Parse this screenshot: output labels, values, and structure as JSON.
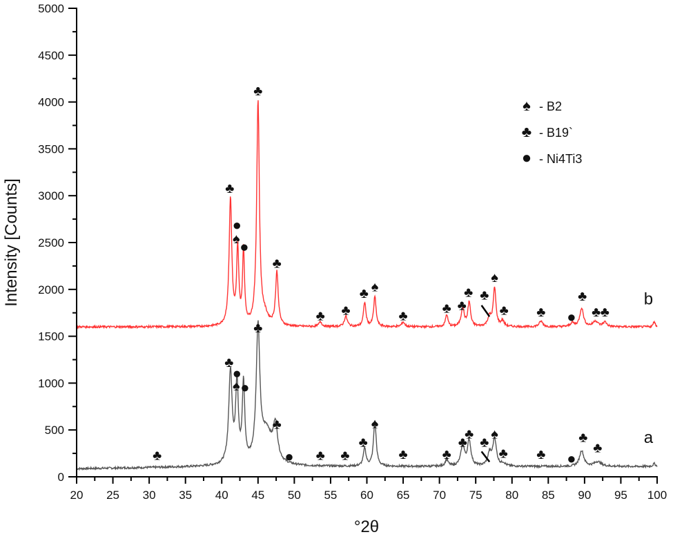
{
  "chart_data": {
    "type": "line",
    "title": "",
    "xlabel": "°2θ",
    "ylabel": "Intensity [Counts]",
    "xlim": [
      20,
      100
    ],
    "ylim": [
      0,
      5000
    ],
    "x_ticks": [
      20,
      25,
      30,
      35,
      40,
      45,
      50,
      55,
      60,
      65,
      70,
      75,
      80,
      85,
      90,
      95,
      100
    ],
    "y_ticks": [
      0,
      500,
      1000,
      1500,
      2000,
      2500,
      3000,
      3500,
      4000,
      4500,
      5000
    ],
    "grid": false,
    "legend_position": "upper right",
    "legend": [
      {
        "symbol": "spade",
        "label": "- B2"
      },
      {
        "symbol": "club",
        "label": "- B19`"
      },
      {
        "symbol": "circle",
        "label": "- Ni4Ti3"
      }
    ],
    "series": [
      {
        "name": "a",
        "color": "#555555",
        "baseline": 110,
        "peaks": [
          {
            "x": 41.2,
            "y": 1100,
            "w": 0.28
          },
          {
            "x": 42.1,
            "y": 960,
            "w": 0.22
          },
          {
            "x": 43.0,
            "y": 950,
            "w": 0.2
          },
          {
            "x": 45.0,
            "y": 1520,
            "w": 0.3
          },
          {
            "x": 46.2,
            "y": 450,
            "w": 0.9
          },
          {
            "x": 47.4,
            "y": 480,
            "w": 0.35
          },
          {
            "x": 59.7,
            "y": 300,
            "w": 0.22
          },
          {
            "x": 61.1,
            "y": 600,
            "w": 0.22
          },
          {
            "x": 71.0,
            "y": 180,
            "w": 0.25
          },
          {
            "x": 73.2,
            "y": 330,
            "w": 0.3
          },
          {
            "x": 74.1,
            "y": 380,
            "w": 0.28
          },
          {
            "x": 76.9,
            "y": 240,
            "w": 0.3
          },
          {
            "x": 77.6,
            "y": 400,
            "w": 0.3
          },
          {
            "x": 78.8,
            "y": 140,
            "w": 0.3
          },
          {
            "x": 89.6,
            "y": 280,
            "w": 0.35
          },
          {
            "x": 91.8,
            "y": 160,
            "w": 0.6
          },
          {
            "x": 99.6,
            "y": 140,
            "w": 0.2
          }
        ]
      },
      {
        "name": "b",
        "color": "#ff3333",
        "baseline": 1600,
        "peaks": [
          {
            "x": 41.2,
            "y": 2960,
            "w": 0.22
          },
          {
            "x": 42.2,
            "y": 2410,
            "w": 0.18
          },
          {
            "x": 43.0,
            "y": 2400,
            "w": 0.16
          },
          {
            "x": 45.0,
            "y": 3990,
            "w": 0.22
          },
          {
            "x": 45.9,
            "y": 1700,
            "w": 0.6
          },
          {
            "x": 47.6,
            "y": 2170,
            "w": 0.22
          },
          {
            "x": 53.6,
            "y": 1650,
            "w": 0.25
          },
          {
            "x": 57.1,
            "y": 1710,
            "w": 0.25
          },
          {
            "x": 59.7,
            "y": 1860,
            "w": 0.2
          },
          {
            "x": 61.1,
            "y": 1920,
            "w": 0.2
          },
          {
            "x": 65.0,
            "y": 1650,
            "w": 0.25
          },
          {
            "x": 71.0,
            "y": 1730,
            "w": 0.2
          },
          {
            "x": 73.2,
            "y": 1800,
            "w": 0.25
          },
          {
            "x": 74.1,
            "y": 1860,
            "w": 0.22
          },
          {
            "x": 76.9,
            "y": 1700,
            "w": 0.3
          },
          {
            "x": 77.6,
            "y": 2010,
            "w": 0.22
          },
          {
            "x": 78.7,
            "y": 1660,
            "w": 0.25
          },
          {
            "x": 84.0,
            "y": 1660,
            "w": 0.3
          },
          {
            "x": 88.3,
            "y": 1640,
            "w": 0.3
          },
          {
            "x": 89.6,
            "y": 1800,
            "w": 0.3
          },
          {
            "x": 91.5,
            "y": 1660,
            "w": 0.4
          },
          {
            "x": 92.8,
            "y": 1650,
            "w": 0.3
          },
          {
            "x": 99.6,
            "y": 1660,
            "w": 0.15
          }
        ]
      }
    ],
    "curve_labels": [
      {
        "text": "a",
        "x": 98.8,
        "y": 420
      },
      {
        "text": "b",
        "x": 98.8,
        "y": 1900
      }
    ],
    "annotations": [
      {
        "series": "b",
        "symbol": "club",
        "x": 45.0,
        "y": 4130
      },
      {
        "series": "b",
        "symbol": "club",
        "x": 41.1,
        "y": 3090
      },
      {
        "series": "b",
        "symbol": "circle",
        "x": 42.1,
        "y": 2690
      },
      {
        "series": "b",
        "symbol": "spade",
        "x": 42.0,
        "y": 2550
      },
      {
        "series": "b",
        "symbol": "circle",
        "x": 43.1,
        "y": 2460
      },
      {
        "series": "b",
        "symbol": "club",
        "x": 47.6,
        "y": 2290
      },
      {
        "series": "b",
        "symbol": "club",
        "x": 53.6,
        "y": 1730
      },
      {
        "series": "b",
        "symbol": "club",
        "x": 57.1,
        "y": 1790
      },
      {
        "series": "b",
        "symbol": "club",
        "x": 59.6,
        "y": 1970
      },
      {
        "series": "b",
        "symbol": "spade",
        "x": 61.1,
        "y": 2040
      },
      {
        "series": "b",
        "symbol": "club",
        "x": 65.0,
        "y": 1730
      },
      {
        "series": "b",
        "symbol": "club",
        "x": 71.0,
        "y": 1810
      },
      {
        "series": "b",
        "symbol": "club",
        "x": 73.1,
        "y": 1840
      },
      {
        "series": "b",
        "symbol": "club",
        "x": 74.0,
        "y": 1980
      },
      {
        "series": "b",
        "symbol": "club",
        "x": 76.2,
        "y": 1950
      },
      {
        "series": "b",
        "symbol": "spade",
        "x": 77.6,
        "y": 2140
      },
      {
        "series": "b",
        "symbol": "club",
        "x": 78.9,
        "y": 1790
      },
      {
        "series": "b",
        "symbol": "club",
        "x": 84.0,
        "y": 1770
      },
      {
        "series": "b",
        "symbol": "circle",
        "x": 88.2,
        "y": 1710
      },
      {
        "series": "b",
        "symbol": "club",
        "x": 89.7,
        "y": 1940
      },
      {
        "series": "b",
        "symbol": "club",
        "x": 91.6,
        "y": 1770
      },
      {
        "series": "b",
        "symbol": "club",
        "x": 92.8,
        "y": 1770
      },
      {
        "series": "a",
        "symbol": "club",
        "x": 45.0,
        "y": 1600
      },
      {
        "series": "a",
        "symbol": "club",
        "x": 41.0,
        "y": 1230
      },
      {
        "series": "a",
        "symbol": "circle",
        "x": 42.1,
        "y": 1110
      },
      {
        "series": "a",
        "symbol": "spade",
        "x": 42.0,
        "y": 980
      },
      {
        "series": "a",
        "symbol": "circle",
        "x": 43.2,
        "y": 960
      },
      {
        "series": "a",
        "symbol": "club",
        "x": 47.6,
        "y": 570
      },
      {
        "series": "a",
        "symbol": "circle",
        "x": 49.3,
        "y": 220
      },
      {
        "series": "a",
        "symbol": "club",
        "x": 31.1,
        "y": 240
      },
      {
        "series": "a",
        "symbol": "club",
        "x": 53.6,
        "y": 240
      },
      {
        "series": "a",
        "symbol": "club",
        "x": 57.0,
        "y": 240
      },
      {
        "series": "a",
        "symbol": "club",
        "x": 59.5,
        "y": 380
      },
      {
        "series": "a",
        "symbol": "spade",
        "x": 61.1,
        "y": 580
      },
      {
        "series": "a",
        "symbol": "club",
        "x": 65.0,
        "y": 250
      },
      {
        "series": "a",
        "symbol": "club",
        "x": 71.0,
        "y": 250
      },
      {
        "series": "a",
        "symbol": "club",
        "x": 73.2,
        "y": 380
      },
      {
        "series": "a",
        "symbol": "club",
        "x": 74.1,
        "y": 470
      },
      {
        "series": "a",
        "symbol": "club",
        "x": 76.2,
        "y": 380
      },
      {
        "series": "a",
        "symbol": "spade",
        "x": 77.6,
        "y": 470
      },
      {
        "series": "a",
        "symbol": "club",
        "x": 78.8,
        "y": 260
      },
      {
        "series": "a",
        "symbol": "club",
        "x": 84.0,
        "y": 250
      },
      {
        "series": "a",
        "symbol": "circle",
        "x": 88.2,
        "y": 200
      },
      {
        "series": "a",
        "symbol": "club",
        "x": 89.8,
        "y": 430
      },
      {
        "series": "a",
        "symbol": "club",
        "x": 91.8,
        "y": 320
      }
    ],
    "arrows": [
      {
        "series": "b",
        "from": [
          75.8,
          1830
        ],
        "to": [
          76.9,
          1710
        ]
      },
      {
        "series": "a",
        "from": [
          75.8,
          270
        ],
        "to": [
          76.9,
          160
        ]
      }
    ]
  }
}
